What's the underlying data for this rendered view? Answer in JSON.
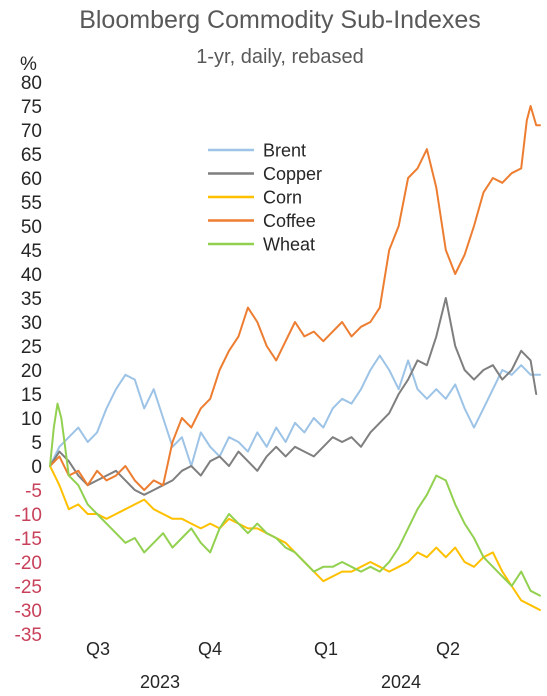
{
  "chart_data": {
    "type": "line",
    "title": "Bloomberg Commodity Sub-Indexes",
    "subtitle": "1-yr, daily, rebased",
    "ylabel": "%",
    "ylim": [
      -35,
      80
    ],
    "yticks": [
      80,
      75,
      70,
      65,
      60,
      55,
      50,
      45,
      40,
      35,
      30,
      25,
      20,
      15,
      10,
      5,
      0,
      -5,
      -10,
      -15,
      -20,
      -25,
      -30,
      -35
    ],
    "x_tick_labels": [
      "Q3",
      "Q4",
      "Q1",
      "Q2"
    ],
    "x_year_labels": [
      "2023",
      "2024"
    ],
    "grid": false,
    "legend_position": "top-center",
    "x_range": [
      0,
      260
    ],
    "x_units": "trading days from start",
    "series": [
      {
        "name": "Brent",
        "color": "#9dc3e6",
        "points": [
          [
            0,
            0
          ],
          [
            5,
            4
          ],
          [
            10,
            6
          ],
          [
            15,
            8
          ],
          [
            20,
            5
          ],
          [
            25,
            7
          ],
          [
            30,
            12
          ],
          [
            35,
            16
          ],
          [
            40,
            19
          ],
          [
            45,
            18
          ],
          [
            50,
            12
          ],
          [
            55,
            16
          ],
          [
            60,
            10
          ],
          [
            65,
            4
          ],
          [
            70,
            6
          ],
          [
            75,
            0
          ],
          [
            80,
            7
          ],
          [
            85,
            4
          ],
          [
            90,
            2
          ],
          [
            95,
            6
          ],
          [
            100,
            5
          ],
          [
            105,
            3
          ],
          [
            110,
            7
          ],
          [
            115,
            4
          ],
          [
            120,
            8
          ],
          [
            125,
            5
          ],
          [
            130,
            9
          ],
          [
            135,
            7
          ],
          [
            140,
            10
          ],
          [
            145,
            8
          ],
          [
            150,
            12
          ],
          [
            155,
            14
          ],
          [
            160,
            13
          ],
          [
            165,
            16
          ],
          [
            170,
            20
          ],
          [
            175,
            23
          ],
          [
            180,
            20
          ],
          [
            185,
            16
          ],
          [
            190,
            22
          ],
          [
            195,
            16
          ],
          [
            200,
            14
          ],
          [
            205,
            16
          ],
          [
            210,
            14
          ],
          [
            215,
            17
          ],
          [
            220,
            12
          ],
          [
            225,
            8
          ],
          [
            230,
            12
          ],
          [
            235,
            16
          ],
          [
            240,
            20
          ],
          [
            245,
            19
          ],
          [
            250,
            21
          ],
          [
            255,
            19
          ],
          [
            260,
            19
          ]
        ]
      },
      {
        "name": "Copper",
        "color": "#7f7f7f",
        "points": [
          [
            0,
            0
          ],
          [
            5,
            3
          ],
          [
            10,
            1
          ],
          [
            15,
            -2
          ],
          [
            20,
            -4
          ],
          [
            25,
            -3
          ],
          [
            30,
            -2
          ],
          [
            35,
            -1
          ],
          [
            40,
            -3
          ],
          [
            45,
            -5
          ],
          [
            50,
            -6
          ],
          [
            55,
            -5
          ],
          [
            60,
            -4
          ],
          [
            65,
            -3
          ],
          [
            70,
            -1
          ],
          [
            75,
            0
          ],
          [
            80,
            -2
          ],
          [
            85,
            1
          ],
          [
            90,
            2
          ],
          [
            95,
            0
          ],
          [
            100,
            3
          ],
          [
            105,
            1
          ],
          [
            110,
            -1
          ],
          [
            115,
            2
          ],
          [
            120,
            4
          ],
          [
            125,
            2
          ],
          [
            130,
            4
          ],
          [
            135,
            3
          ],
          [
            140,
            2
          ],
          [
            145,
            4
          ],
          [
            150,
            6
          ],
          [
            155,
            5
          ],
          [
            160,
            6
          ],
          [
            165,
            4
          ],
          [
            170,
            7
          ],
          [
            175,
            9
          ],
          [
            180,
            11
          ],
          [
            185,
            15
          ],
          [
            190,
            18
          ],
          [
            195,
            22
          ],
          [
            200,
            21
          ],
          [
            205,
            27
          ],
          [
            210,
            35
          ],
          [
            215,
            25
          ],
          [
            220,
            20
          ],
          [
            225,
            18
          ],
          [
            230,
            20
          ],
          [
            235,
            21
          ],
          [
            240,
            18
          ],
          [
            245,
            20
          ],
          [
            250,
            24
          ],
          [
            255,
            22
          ],
          [
            258,
            15
          ]
        ]
      },
      {
        "name": "Corn",
        "color": "#ffc000",
        "points": [
          [
            0,
            0
          ],
          [
            5,
            -4
          ],
          [
            10,
            -9
          ],
          [
            15,
            -8
          ],
          [
            20,
            -10
          ],
          [
            25,
            -10
          ],
          [
            30,
            -11
          ],
          [
            35,
            -10
          ],
          [
            40,
            -9
          ],
          [
            45,
            -8
          ],
          [
            50,
            -7
          ],
          [
            55,
            -9
          ],
          [
            60,
            -10
          ],
          [
            65,
            -11
          ],
          [
            70,
            -11
          ],
          [
            75,
            -12
          ],
          [
            80,
            -13
          ],
          [
            85,
            -12
          ],
          [
            90,
            -13
          ],
          [
            95,
            -11
          ],
          [
            100,
            -12
          ],
          [
            105,
            -13
          ],
          [
            110,
            -13
          ],
          [
            115,
            -14
          ],
          [
            120,
            -15
          ],
          [
            125,
            -16
          ],
          [
            130,
            -18
          ],
          [
            135,
            -20
          ],
          [
            140,
            -22
          ],
          [
            145,
            -24
          ],
          [
            150,
            -23
          ],
          [
            155,
            -22
          ],
          [
            160,
            -22
          ],
          [
            165,
            -21
          ],
          [
            170,
            -20
          ],
          [
            175,
            -21
          ],
          [
            180,
            -22
          ],
          [
            185,
            -21
          ],
          [
            190,
            -20
          ],
          [
            195,
            -18
          ],
          [
            200,
            -19
          ],
          [
            205,
            -17
          ],
          [
            210,
            -19
          ],
          [
            215,
            -17
          ],
          [
            220,
            -20
          ],
          [
            225,
            -21
          ],
          [
            230,
            -19
          ],
          [
            235,
            -18
          ],
          [
            240,
            -22
          ],
          [
            245,
            -25
          ],
          [
            250,
            -28
          ],
          [
            255,
            -29
          ],
          [
            260,
            -30
          ]
        ]
      },
      {
        "name": "Coffee",
        "color": "#ed7d31",
        "points": [
          [
            0,
            0
          ],
          [
            5,
            2
          ],
          [
            10,
            -2
          ],
          [
            15,
            -1
          ],
          [
            20,
            -4
          ],
          [
            25,
            -1
          ],
          [
            30,
            -3
          ],
          [
            35,
            -2
          ],
          [
            40,
            0
          ],
          [
            45,
            -3
          ],
          [
            50,
            -5
          ],
          [
            55,
            -3
          ],
          [
            60,
            -4
          ],
          [
            65,
            5
          ],
          [
            70,
            10
          ],
          [
            75,
            8
          ],
          [
            80,
            12
          ],
          [
            85,
            14
          ],
          [
            90,
            20
          ],
          [
            95,
            24
          ],
          [
            100,
            27
          ],
          [
            105,
            33
          ],
          [
            110,
            30
          ],
          [
            115,
            25
          ],
          [
            120,
            22
          ],
          [
            125,
            26
          ],
          [
            130,
            30
          ],
          [
            135,
            27
          ],
          [
            140,
            28
          ],
          [
            145,
            26
          ],
          [
            150,
            28
          ],
          [
            155,
            30
          ],
          [
            160,
            27
          ],
          [
            165,
            29
          ],
          [
            170,
            30
          ],
          [
            175,
            33
          ],
          [
            180,
            45
          ],
          [
            185,
            50
          ],
          [
            190,
            60
          ],
          [
            195,
            62
          ],
          [
            200,
            66
          ],
          [
            205,
            58
          ],
          [
            210,
            45
          ],
          [
            215,
            40
          ],
          [
            220,
            44
          ],
          [
            225,
            50
          ],
          [
            230,
            57
          ],
          [
            235,
            60
          ],
          [
            240,
            59
          ],
          [
            245,
            61
          ],
          [
            250,
            62
          ],
          [
            253,
            72
          ],
          [
            255,
            75
          ],
          [
            258,
            71
          ],
          [
            260,
            71
          ]
        ]
      },
      {
        "name": "Wheat",
        "color": "#92d050",
        "points": [
          [
            0,
            0
          ],
          [
            2,
            8
          ],
          [
            4,
            13
          ],
          [
            6,
            10
          ],
          [
            8,
            4
          ],
          [
            10,
            -2
          ],
          [
            15,
            -4
          ],
          [
            20,
            -8
          ],
          [
            25,
            -10
          ],
          [
            30,
            -12
          ],
          [
            35,
            -14
          ],
          [
            40,
            -16
          ],
          [
            45,
            -15
          ],
          [
            50,
            -18
          ],
          [
            55,
            -16
          ],
          [
            60,
            -14
          ],
          [
            65,
            -17
          ],
          [
            70,
            -15
          ],
          [
            75,
            -13
          ],
          [
            80,
            -16
          ],
          [
            85,
            -18
          ],
          [
            90,
            -13
          ],
          [
            95,
            -10
          ],
          [
            100,
            -12
          ],
          [
            105,
            -14
          ],
          [
            110,
            -12
          ],
          [
            115,
            -14
          ],
          [
            120,
            -15
          ],
          [
            125,
            -17
          ],
          [
            130,
            -18
          ],
          [
            135,
            -20
          ],
          [
            140,
            -22
          ],
          [
            145,
            -21
          ],
          [
            150,
            -21
          ],
          [
            155,
            -20
          ],
          [
            160,
            -21
          ],
          [
            165,
            -22
          ],
          [
            170,
            -21
          ],
          [
            175,
            -22
          ],
          [
            180,
            -20
          ],
          [
            185,
            -17
          ],
          [
            190,
            -13
          ],
          [
            195,
            -9
          ],
          [
            200,
            -6
          ],
          [
            205,
            -2
          ],
          [
            210,
            -3
          ],
          [
            215,
            -8
          ],
          [
            220,
            -12
          ],
          [
            225,
            -15
          ],
          [
            230,
            -19
          ],
          [
            235,
            -21
          ],
          [
            240,
            -23
          ],
          [
            245,
            -25
          ],
          [
            250,
            -22
          ],
          [
            255,
            -26
          ],
          [
            260,
            -27
          ]
        ]
      }
    ]
  }
}
